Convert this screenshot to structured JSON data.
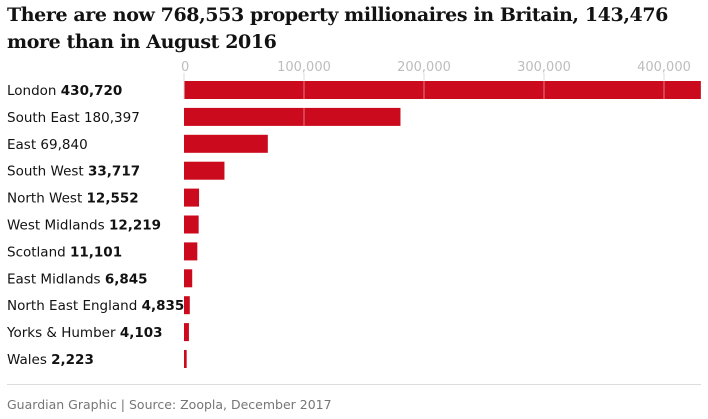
{
  "chart_data": {
    "type": "bar",
    "orientation": "horizontal",
    "title": "There are now 768,553 property millionaires in Britain, 143,476 more than in August 2016",
    "categories": [
      "London",
      "South East",
      "East",
      "South West",
      "North West",
      "West Midlands",
      "Scotland",
      "East Midlands",
      "North East England",
      "Yorks & Humber",
      "Wales"
    ],
    "value_labels": [
      "430,720",
      "180,397",
      "69,840",
      "33,717",
      "12,552",
      "12,219",
      "11,101",
      "6,845",
      "4,835",
      "4,103",
      "2,223"
    ],
    "value_bold": [
      true,
      false,
      false,
      true,
      true,
      true,
      true,
      true,
      true,
      true,
      true
    ],
    "values": [
      430720,
      180397,
      69840,
      33717,
      12552,
      12219,
      11101,
      6845,
      4835,
      4103,
      2223
    ],
    "xlim": [
      0,
      430720
    ],
    "xticks": [
      0,
      100000,
      200000,
      300000,
      400000
    ],
    "xtick_labels": [
      "0",
      "100,000",
      "200,000",
      "300,000",
      "400,000"
    ],
    "grid": true,
    "bar_color": "#cc0a1e",
    "source": "Guardian Graphic | Source: Zoopla, December 2017"
  }
}
